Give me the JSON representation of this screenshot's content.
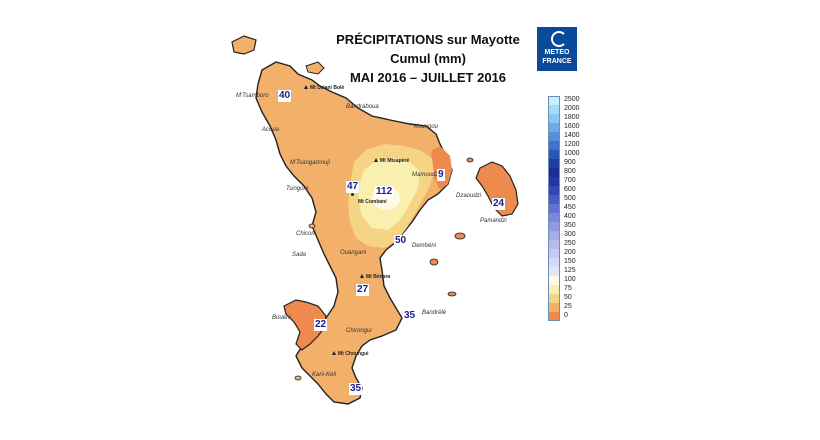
{
  "map": {
    "title": "PRÉCIPITATIONS sur Mayotte",
    "subtitle": "Cumul (mm)",
    "period": "MAI 2016 – JUILLET 2016",
    "logo": {
      "line1": "METEO",
      "line2": "FRANCE",
      "color": "#0a4a9a"
    },
    "legend": [
      {
        "label": "2500",
        "color": "#c8f0ff"
      },
      {
        "label": "2000",
        "color": "#a9dcf8"
      },
      {
        "label": "1800",
        "color": "#8ec6ef"
      },
      {
        "label": "1600",
        "color": "#6fa9e2"
      },
      {
        "label": "1400",
        "color": "#558fd6"
      },
      {
        "label": "1200",
        "color": "#3f73c6"
      },
      {
        "label": "1000",
        "color": "#2a58b3"
      },
      {
        "label": "900",
        "color": "#1c3f9f"
      },
      {
        "label": "800",
        "color": "#1a2f92"
      },
      {
        "label": "700",
        "color": "#2436a2"
      },
      {
        "label": "600",
        "color": "#3646b4"
      },
      {
        "label": "500",
        "color": "#4c5ac4"
      },
      {
        "label": "450",
        "color": "#6570d0"
      },
      {
        "label": "400",
        "color": "#7d86d9"
      },
      {
        "label": "350",
        "color": "#9399e0"
      },
      {
        "label": "300",
        "color": "#a7abe6"
      },
      {
        "label": "250",
        "color": "#b7bbeb"
      },
      {
        "label": "200",
        "color": "#c6c9f0"
      },
      {
        "label": "150",
        "color": "#d5d7f4"
      },
      {
        "label": "125",
        "color": "#e3e4f8"
      },
      {
        "label": "100",
        "color": "#fdfbe6"
      },
      {
        "label": "75",
        "color": "#f9efae"
      },
      {
        "label": "50",
        "color": "#f6d485"
      },
      {
        "label": "25",
        "color": "#f3b06a"
      },
      {
        "label": "0",
        "color": "#ef8a4e"
      }
    ],
    "stations": [
      {
        "value": "40"
      },
      {
        "value": "47"
      },
      {
        "value": "112"
      },
      {
        "value": "9"
      },
      {
        "value": "24"
      },
      {
        "value": "50"
      },
      {
        "value": "27"
      },
      {
        "value": "35"
      },
      {
        "value": "22"
      },
      {
        "value": "35"
      }
    ],
    "places": [
      "M'Tsamboro",
      "Acoua",
      "Bandraboua",
      "Koungou",
      "M'Tsangamouji",
      "Tsingoni",
      "Mamoudzou",
      "Dzaoudzi",
      "Pamandzi",
      "Chiconi",
      "Sada",
      "Ouangani",
      "Dembéni",
      "Bandrélé",
      "Bouéni",
      "Chirongui",
      "Kani-Kéli"
    ],
    "peaks": [
      "Mt Dziani Bolé",
      "Mt Mtsapéré",
      "Mt Combani",
      "Mt Bénara",
      "Mt Choungui"
    ]
  }
}
